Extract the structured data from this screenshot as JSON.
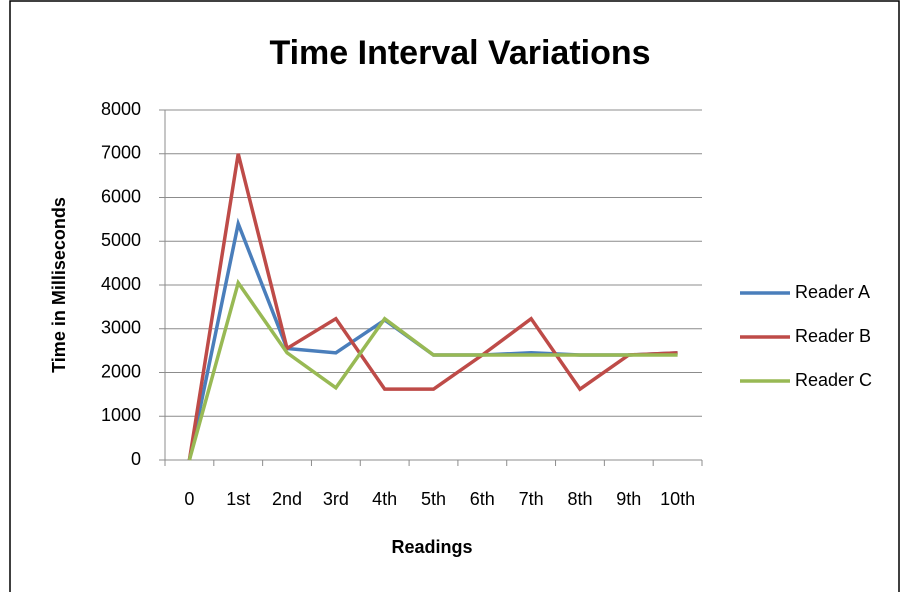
{
  "chart_data": {
    "type": "line",
    "title": "Time Interval Variations",
    "y_label": "Time in Milliseconds",
    "x_label": "Readings",
    "categories": [
      "0",
      "1st",
      "2nd",
      "3rd",
      "4th",
      "5th",
      "6th",
      "7th",
      "8th",
      "9th",
      "10th"
    ],
    "series": [
      {
        "name": "Reader A",
        "color": "#4a7ebb",
        "values": [
          0,
          5400,
          2550,
          2450,
          3200,
          2400,
          2400,
          2450,
          2400,
          2400,
          2450
        ]
      },
      {
        "name": "Reader B",
        "color": "#be4b48",
        "values": [
          0,
          7000,
          2550,
          3230,
          1620,
          1620,
          2400,
          3230,
          1620,
          2400,
          2450
        ]
      },
      {
        "name": "Reader C",
        "color": "#98b954",
        "values": [
          0,
          4050,
          2450,
          1650,
          3230,
          2400,
          2400,
          2400,
          2400,
          2400,
          2400
        ]
      }
    ],
    "ylim": [
      0,
      8000
    ],
    "yticks": [
      0,
      1000,
      2000,
      3000,
      4000,
      5000,
      6000,
      7000,
      8000
    ],
    "grid": true,
    "legend": "right"
  }
}
